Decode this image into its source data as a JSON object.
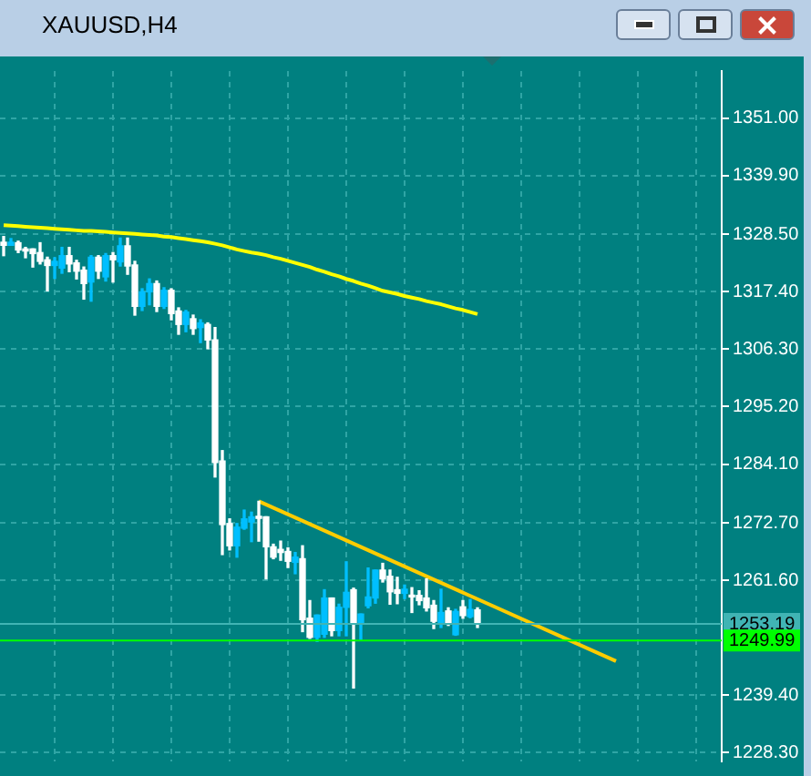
{
  "chart_data": {
    "type": "candlestick",
    "title": "XAUUSD,H4",
    "categories": [
      null,
      null,
      null,
      null,
      null,
      null,
      null,
      null,
      null,
      null,
      null,
      null,
      null,
      null,
      null,
      null,
      null,
      null,
      null,
      null,
      null,
      null,
      null,
      null,
      null,
      null,
      null,
      null,
      null,
      null,
      null,
      null,
      null,
      null,
      null,
      null,
      null,
      null,
      null,
      null,
      null,
      null,
      null,
      null,
      null,
      null,
      null,
      null,
      null,
      null,
      null,
      null,
      null,
      null,
      null,
      null,
      null,
      null,
      null,
      null,
      null,
      null,
      null,
      null,
      null,
      null,
      null,
      null,
      null,
      null,
      null,
      null,
      null,
      null,
      null,
      null,
      null,
      null,
      null,
      null,
      null,
      null,
      null,
      null,
      null,
      null,
      null,
      null,
      null,
      null,
      null,
      null,
      null,
      null,
      null,
      null,
      null,
      null,
      null
    ],
    "ohlc": [
      [
        1327.0,
        1328.1,
        1324.4,
        1326.4
      ],
      [
        1326.4,
        1327.7,
        1326.4,
        1327.0
      ],
      [
        1326.9,
        1327.2,
        1325.0,
        1325.5
      ],
      [
        1325.7,
        1326.0,
        1324.0,
        1325.3
      ],
      [
        1325.7,
        1325.7,
        1322.2,
        1324.8
      ],
      [
        1325.0,
        1326.9,
        1322.8,
        1323.3
      ],
      [
        1323.6,
        1324.1,
        1317.6,
        1322.5
      ],
      [
        1322.5,
        1324.0,
        1320.0,
        1323.3
      ],
      [
        1322.0,
        1326.0,
        1321.0,
        1324.4
      ],
      [
        1324.4,
        1326.0,
        1321.3,
        1322.8
      ],
      [
        1323.0,
        1323.5,
        1319.9,
        1321.4
      ],
      [
        1321.6,
        1322.2,
        1316.0,
        1319.0
      ],
      [
        1319.3,
        1324.4,
        1315.6,
        1324.1
      ],
      [
        1324.1,
        1324.4,
        1320.0,
        1321.4
      ],
      [
        1320.3,
        1324.8,
        1319.5,
        1324.4
      ],
      [
        1324.4,
        1325.0,
        1319.3,
        1323.6
      ],
      [
        1323.2,
        1327.8,
        1322.4,
        1326.3
      ],
      [
        1326.3,
        1327.8,
        1320.8,
        1322.4
      ],
      [
        1322.6,
        1323.3,
        1312.9,
        1314.6
      ],
      [
        1314.6,
        1318.0,
        1313.8,
        1317.4
      ],
      [
        1317.4,
        1319.9,
        1314.9,
        1319.0
      ],
      [
        1319.0,
        1319.5,
        1313.6,
        1314.6
      ],
      [
        1314.6,
        1318.2,
        1314.2,
        1317.7
      ],
      [
        1317.7,
        1318.0,
        1312.0,
        1313.2
      ],
      [
        1313.7,
        1314.3,
        1309.2,
        1311.1
      ],
      [
        1311.1,
        1313.8,
        1309.7,
        1313.5
      ],
      [
        1312.2,
        1312.9,
        1309.2,
        1310.3
      ],
      [
        1310.5,
        1312.0,
        1307.6,
        1311.4
      ],
      [
        1311.1,
        1311.4,
        1306.4,
        1308.1
      ],
      [
        1308.1,
        1310.5,
        1281.6,
        1284.4
      ],
      [
        1284.7,
        1286.7,
        1266.6,
        1272.4
      ],
      [
        1272.6,
        1273.5,
        1267.5,
        1268.3
      ],
      [
        1268.3,
        1272.6,
        1266.1,
        1271.9
      ],
      [
        1271.7,
        1275.2,
        1271.5,
        1273.5
      ],
      [
        1272.9,
        1274.8,
        1269.1,
        1273.9
      ],
      [
        1274.0,
        1276.9,
        1269.2,
        1273.6
      ],
      [
        1273.9,
        1273.9,
        1261.9,
        1268.1
      ],
      [
        1268.1,
        1268.6,
        1265.8,
        1266.1
      ],
      [
        1267.6,
        1269.2,
        1265.5,
        1267.0
      ],
      [
        1267.2,
        1267.9,
        1264.1,
        1265.3
      ],
      [
        1265.1,
        1267.0,
        1262.9,
        1266.1
      ],
      [
        1265.8,
        1268.3,
        1251.7,
        1254.0
      ],
      [
        1254.3,
        1257.7,
        1250.4,
        1250.6
      ],
      [
        1250.6,
        1254.9,
        1249.8,
        1254.9
      ],
      [
        1251.2,
        1259.8,
        1250.6,
        1258.2
      ],
      [
        1258.2,
        1258.2,
        1250.9,
        1251.9
      ],
      [
        1251.9,
        1257.0,
        1250.9,
        1256.4
      ],
      [
        1256.4,
        1265.2,
        1250.9,
        1259.3
      ],
      [
        1259.8,
        1260.1,
        1240.8,
        1253.4
      ],
      [
        1253.4,
        1255.1,
        1250.0,
        1255.1
      ],
      [
        1256.7,
        1264.0,
        1256.3,
        1258.4
      ],
      [
        1258.2,
        1263.6,
        1257.2,
        1263.6
      ],
      [
        1263.6,
        1264.9,
        1261.3,
        1261.9
      ],
      [
        1262.4,
        1263.6,
        1257.0,
        1259.4
      ],
      [
        1259.8,
        1262.2,
        1257.1,
        1259.1
      ],
      [
        1259.1,
        1260.7,
        1258.1,
        1259.9
      ],
      [
        1258.7,
        1260.2,
        1255.4,
        1258.4
      ],
      [
        1258.7,
        1259.6,
        1256.9,
        1257.7
      ],
      [
        1258.2,
        1261.9,
        1255.7,
        1256.3
      ],
      [
        1256.8,
        1257.7,
        1252.3,
        1253.7
      ],
      [
        1253.4,
        1259.9,
        1252.5,
        1255.4
      ],
      [
        1255.7,
        1256.3,
        1252.9,
        1253.2
      ],
      [
        1251.1,
        1256.0,
        1251.0,
        1255.6
      ],
      [
        1256.5,
        1257.7,
        1254.3,
        1254.8
      ],
      [
        1254.6,
        1257.9,
        1254.4,
        1256.0
      ],
      [
        1255.9,
        1256.3,
        1252.5,
        1253.19
      ],
      null,
      null,
      null,
      null,
      null,
      null,
      null,
      null,
      null,
      null,
      null,
      null,
      null,
      null,
      null,
      null,
      null,
      null,
      null,
      null,
      null,
      null,
      null,
      null,
      null,
      null,
      null,
      null,
      null,
      null,
      null,
      null,
      null
    ],
    "series": [
      {
        "type": "line",
        "color": "#ffff00",
        "values": [
          1330.3,
          1330.2,
          1330.1,
          1330.0,
          1329.9,
          1329.8,
          1329.7,
          1329.6,
          1329.5,
          1329.4,
          1329.3,
          1329.2,
          1329.2,
          1329.1,
          1329.0,
          1328.9,
          1328.8,
          1328.7,
          1328.6,
          1328.5,
          1328.4,
          1328.3,
          1328.1,
          1328.0,
          1327.8,
          1327.6,
          1327.4,
          1327.2,
          1327.0,
          1326.7,
          1326.4,
          1326.0,
          1325.6,
          1325.3,
          1325.0,
          1324.8,
          1324.5,
          1324.1,
          1323.8,
          1323.4,
          1323.0,
          1322.6,
          1322.2,
          1321.7,
          1321.3,
          1320.8,
          1320.4,
          1319.9,
          1319.5,
          1319.0,
          1318.6,
          1318.1,
          1317.6,
          1317.3,
          1317.0,
          1316.6,
          1316.3,
          1316.0,
          1315.6,
          1315.3,
          1315.0,
          1314.6,
          1314.2,
          1313.9,
          1313.5,
          1313.1,
          null,
          null,
          null,
          null,
          null,
          null,
          null,
          null,
          null,
          null,
          null,
          null,
          null,
          null,
          null,
          null,
          null,
          null,
          null,
          null,
          null,
          null,
          null,
          null,
          null,
          null,
          null,
          null,
          null,
          null,
          null,
          null,
          null
        ]
      },
      {
        "type": "line",
        "color": "#ffcc00",
        "values": [
          null,
          null,
          null,
          null,
          null,
          null,
          null,
          null,
          null,
          null,
          null,
          null,
          null,
          null,
          null,
          null,
          null,
          null,
          null,
          null,
          null,
          null,
          null,
          null,
          null,
          null,
          null,
          null,
          null,
          null,
          null,
          null,
          null,
          null,
          null,
          1276.9,
          null,
          null,
          null,
          null,
          null,
          null,
          null,
          null,
          null,
          null,
          null,
          null,
          null,
          null,
          null,
          null,
          null,
          null,
          null,
          null,
          null,
          null,
          null,
          null,
          null,
          null,
          null,
          null,
          null,
          null,
          null,
          null,
          null,
          null,
          null,
          null,
          null,
          null,
          null,
          null,
          null,
          null,
          null,
          null,
          null,
          null,
          null,
          null,
          1246.0,
          null,
          null,
          null,
          null,
          null,
          null,
          null,
          null,
          null,
          null,
          null,
          null,
          null,
          null
        ]
      }
    ],
    "ylim": [
      1226.6,
      1360.1
    ],
    "yticks": [
      {
        "value": 1351,
        "label": "1351.00"
      },
      {
        "value": 1339.9,
        "label": "1339.90"
      },
      {
        "value": 1328.5,
        "label": "1328.50"
      },
      {
        "value": 1317.4,
        "label": "1317.40"
      },
      {
        "value": 1306.3,
        "label": "1306.30"
      },
      {
        "value": 1295.2,
        "label": "1295.20"
      },
      {
        "value": 1284.1,
        "label": "1284.10"
      },
      {
        "value": 1272.7,
        "label": "1272.70"
      },
      {
        "value": 1261.6,
        "label": "1261.60"
      },
      {
        "value": 1239.4,
        "label": "1239.40"
      },
      {
        "value": 1228.3,
        "label": "1228.30"
      }
    ],
    "ref_lines": [
      {
        "axis": "y",
        "value": 1253.19,
        "label": "1253.19",
        "color": "#40b4b4"
      },
      {
        "axis": "y",
        "value": 1249.99,
        "label": "1249.99",
        "color": "#00ff00"
      }
    ],
    "grid": true,
    "legend": false,
    "tick_labels": "y"
  }
}
